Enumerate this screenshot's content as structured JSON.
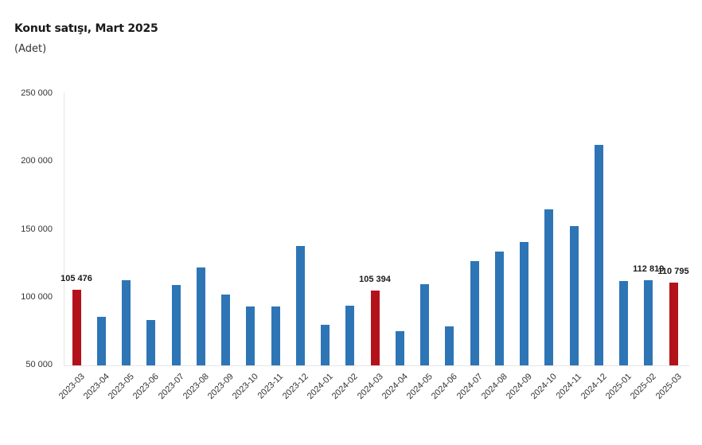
{
  "header": {
    "title": "Konut satışı, Mart 2025",
    "subtitle": "(Adet)"
  },
  "colors": {
    "bar_default": "#2e75b6",
    "bar_highlight": "#b4121b"
  },
  "y_axis": {
    "ticks": [
      "250 000",
      "200 000",
      "150 000",
      "100 000",
      "50 000"
    ]
  },
  "chart_data": {
    "type": "bar",
    "title": "Konut satışı, Mart 2025",
    "subtitle": "(Adet)",
    "xlabel": "",
    "ylabel": "Adet",
    "ylim": [
      50000,
      250000
    ],
    "yticks": [
      50000,
      100000,
      150000,
      200000,
      250000
    ],
    "grid": false,
    "legend": null,
    "categories": [
      "2023-03",
      "2023-04",
      "2023-05",
      "2023-06",
      "2023-07",
      "2023-08",
      "2023-09",
      "2023-10",
      "2023-11",
      "2023-12",
      "2024-01",
      "2024-02",
      "2024-03",
      "2024-04",
      "2024-05",
      "2024-06",
      "2024-07",
      "2024-08",
      "2024-09",
      "2024-10",
      "2024-11",
      "2024-12",
      "2025-01",
      "2025-02",
      "2025-03"
    ],
    "values": [
      105476,
      85800,
      112700,
      83400,
      109200,
      122100,
      102200,
      93400,
      93400,
      137900,
      79900,
      94000,
      105394,
      75200,
      109800,
      78700,
      126800,
      133800,
      140900,
      164900,
      152600,
      212400,
      112100,
      112819,
      110795
    ],
    "highlighted": [
      "2023-03",
      "2024-03",
      "2025-03"
    ],
    "data_labels": [
      {
        "category": "2023-03",
        "text": "105 476"
      },
      {
        "category": "2024-03",
        "text": "105 394"
      },
      {
        "category": "2025-02",
        "text": "112 819"
      },
      {
        "category": "2025-03",
        "text": "110 795"
      }
    ]
  }
}
